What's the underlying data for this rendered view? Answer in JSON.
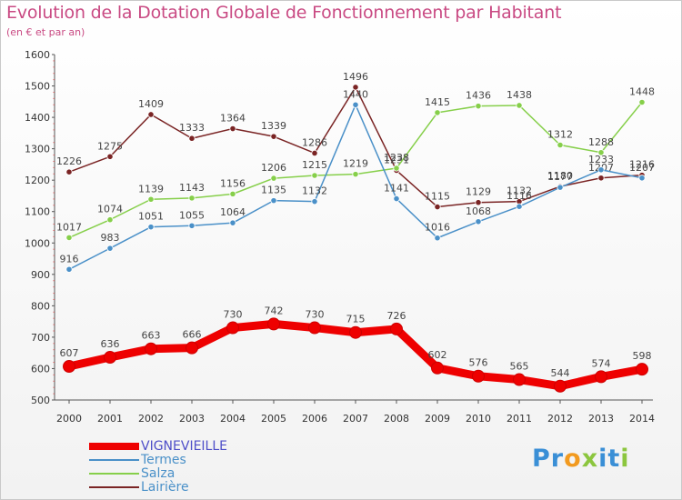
{
  "title": "Evolution de la Dotation Globale de Fonctionnement par Habitant",
  "subtitle": "(en € et par an)",
  "logo": {
    "letters": [
      {
        "ch": "P",
        "color": "#3a8fd6"
      },
      {
        "ch": "r",
        "color": "#3a8fd6"
      },
      {
        "ch": "o",
        "color": "#f29a1f"
      },
      {
        "ch": "x",
        "color": "#8cc63e"
      },
      {
        "ch": "i",
        "color": "#3a8fd6"
      },
      {
        "ch": "t",
        "color": "#3a8fd6"
      },
      {
        "ch": "i",
        "color": "#8cc63e"
      }
    ]
  },
  "chart_data": {
    "type": "line",
    "title": "Evolution de la Dotation Globale de Fonctionnement par Habitant",
    "subtitle": "(en € et par an)",
    "xlabel": "",
    "ylabel": "",
    "x": [
      "2000",
      "2001",
      "2002",
      "2003",
      "2004",
      "2005",
      "2006",
      "2007",
      "2008",
      "2009",
      "2010",
      "2011",
      "2012",
      "2013",
      "2014"
    ],
    "ylim": [
      500,
      1600
    ],
    "yticks": [
      "500",
      "600",
      "700",
      "800",
      "900",
      "1000",
      "1100",
      "1200",
      "1300",
      "1400",
      "1500",
      "1600"
    ],
    "grid": false,
    "legend_position": "bottom-left",
    "series": [
      {
        "name": "VIGNEVIEILLE",
        "color": "#ee0000",
        "line_width": 9,
        "label_color": "#4e4ec8",
        "values": [
          607,
          636,
          663,
          666,
          730,
          742,
          730,
          715,
          726,
          602,
          576,
          565,
          544,
          574,
          598
        ],
        "labels": [
          "607",
          "636",
          "663",
          "666",
          "730",
          "742",
          "730",
          "715",
          "726",
          "602",
          "576",
          "565",
          "544",
          "574",
          "598"
        ]
      },
      {
        "name": "Termes",
        "color": "#4a90c8",
        "line_width": 1.5,
        "label_color": "#4a90c8",
        "values": [
          916,
          983,
          1051,
          1055,
          1064,
          1135,
          1132,
          1440,
          1141,
          1016,
          1068,
          1116,
          1177,
          1233,
          1207
        ],
        "labels": [
          "916",
          "983",
          "1051",
          "1055",
          "1064",
          "1135",
          "1132",
          "1440",
          "1141",
          "1016",
          "1068",
          "1116",
          "1177",
          "1233",
          "1207"
        ]
      },
      {
        "name": "Salza",
        "color": "#86cf4a",
        "line_width": 1.5,
        "label_color": "#86cf4a",
        "values": [
          1017,
          1074,
          1139,
          1143,
          1156,
          1206,
          1215,
          1219,
          1238,
          1415,
          1436,
          1438,
          1312,
          1288,
          1448
        ],
        "labels": [
          "1017",
          "1074",
          "1139",
          "1143",
          "1156",
          "1206",
          "1215",
          "1219",
          "1238",
          "1415",
          "1436",
          "1438",
          "1312",
          "1288",
          "1448"
        ]
      },
      {
        "name": "Lairière",
        "color": "#7a2424",
        "line_width": 1.5,
        "label_color": "#7a2424",
        "values": [
          1226,
          1275,
          1409,
          1333,
          1364,
          1339,
          1286,
          1496,
          1231,
          1115,
          1129,
          1132,
          1180,
          1207,
          1216
        ],
        "labels": [
          "1226",
          "1275",
          "1409",
          "1333",
          "1364",
          "1339",
          "1286",
          "1496",
          "1231",
          "1115",
          "1129",
          "1132",
          "1180",
          "1207",
          "1216"
        ]
      }
    ]
  }
}
